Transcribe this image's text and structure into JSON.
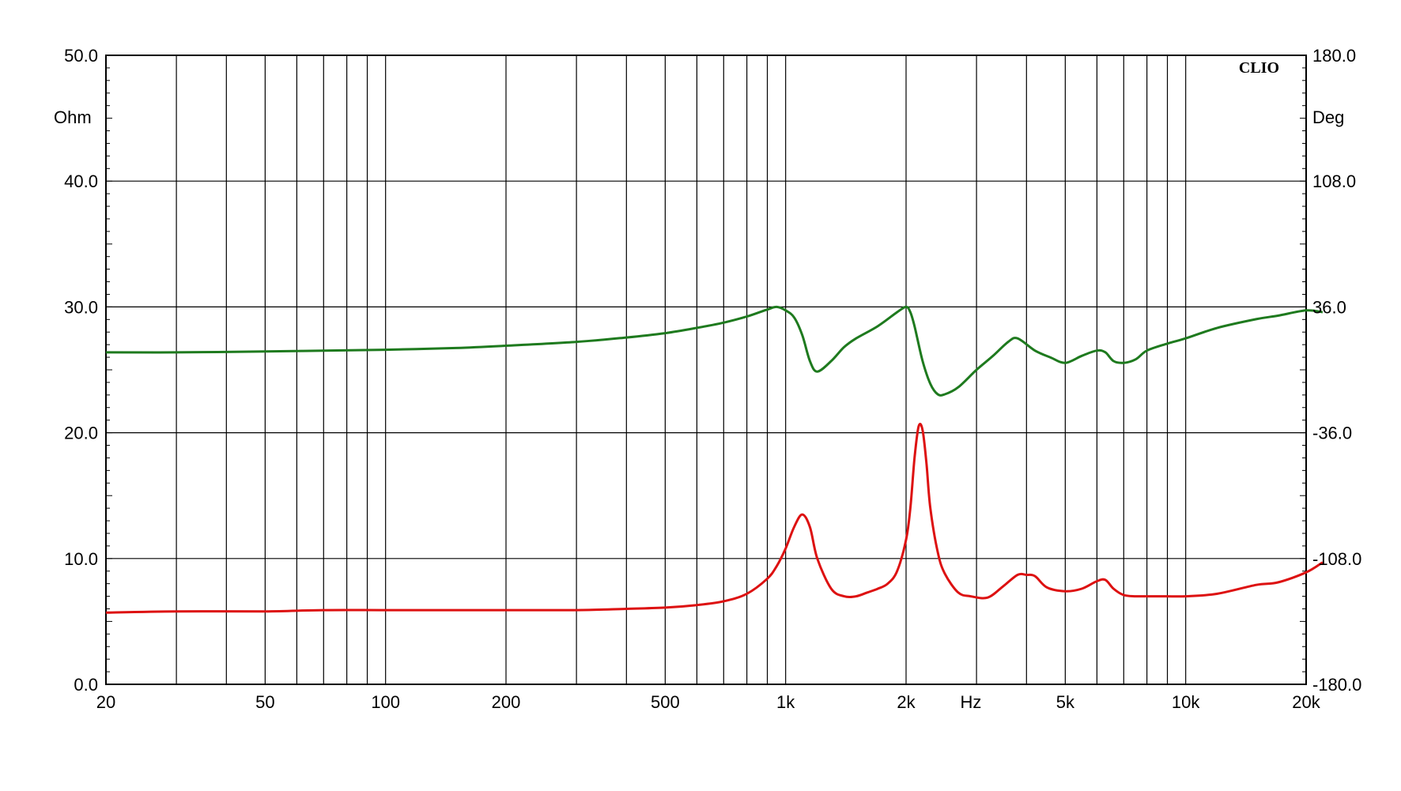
{
  "chart_data": {
    "type": "line",
    "brand": "CLIO",
    "x_scale": "log",
    "xlim": [
      20,
      20000
    ],
    "x_axis_unit": "Hz",
    "x_ticks": [
      {
        "value": 20,
        "label": "20"
      },
      {
        "value": 50,
        "label": "50"
      },
      {
        "value": 100,
        "label": "100"
      },
      {
        "value": 200,
        "label": "200"
      },
      {
        "value": 500,
        "label": "500"
      },
      {
        "value": 1000,
        "label": "1k"
      },
      {
        "value": 2000,
        "label": "2k"
      },
      {
        "value": 5000,
        "label": "5k"
      },
      {
        "value": 10000,
        "label": "10k"
      },
      {
        "value": 20000,
        "label": "20k"
      }
    ],
    "y_left": {
      "unit": "Ohm",
      "ylim": [
        0,
        50
      ],
      "ticks": [
        "0.0",
        "10.0",
        "20.0",
        "30.0",
        "40.0",
        "50.0"
      ]
    },
    "y_right": {
      "unit": "Deg",
      "ylim": [
        -180,
        180
      ],
      "ticks": [
        "-180.0",
        "-108.0",
        "-36.0",
        "36.0",
        "108.0",
        "180.0"
      ]
    },
    "grid": true,
    "series": [
      {
        "axis": "left",
        "color": "#dd1111",
        "x": [
          20,
          30,
          50,
          70,
          100,
          150,
          200,
          300,
          400,
          500,
          600,
          700,
          800,
          900,
          950,
          1000,
          1050,
          1100,
          1150,
          1200,
          1300,
          1400,
          1500,
          1600,
          1700,
          1800,
          1900,
          2000,
          2050,
          2100,
          2150,
          2200,
          2250,
          2300,
          2400,
          2500,
          2700,
          2900,
          3200,
          3500,
          3800,
          4000,
          4200,
          4500,
          5000,
          5500,
          6000,
          6300,
          6600,
          7000,
          7500,
          8000,
          9000,
          10000,
          12000,
          15000,
          17000,
          20000,
          22000
        ],
        "y": [
          5.7,
          5.8,
          5.8,
          5.9,
          5.9,
          5.9,
          5.9,
          5.9,
          6.0,
          6.1,
          6.3,
          6.6,
          7.2,
          8.4,
          9.4,
          10.8,
          12.5,
          13.5,
          12.5,
          10.0,
          7.6,
          7.0,
          7.0,
          7.3,
          7.6,
          8.0,
          9.0,
          11.5,
          14.0,
          18.0,
          20.5,
          20.2,
          17.5,
          14.0,
          10.5,
          8.8,
          7.3,
          7.0,
          6.9,
          7.8,
          8.7,
          8.7,
          8.6,
          7.7,
          7.4,
          7.6,
          8.2,
          8.3,
          7.6,
          7.1,
          7.0,
          7.0,
          7.0,
          7.0,
          7.2,
          7.9,
          8.1,
          8.9,
          9.7
        ]
      },
      {
        "axis": "right",
        "color": "#1e7a1e",
        "x": [
          20,
          30,
          50,
          70,
          100,
          150,
          200,
          300,
          400,
          500,
          600,
          700,
          800,
          900,
          950,
          1000,
          1050,
          1100,
          1150,
          1200,
          1300,
          1400,
          1500,
          1700,
          1900,
          2000,
          2050,
          2100,
          2200,
          2300,
          2400,
          2500,
          2700,
          3000,
          3300,
          3600,
          3800,
          4200,
          4600,
          5000,
          5500,
          6000,
          6300,
          6600,
          7000,
          7500,
          8000,
          9000,
          10000,
          12000,
          15000,
          17000,
          20000,
          22000
        ],
        "y": [
          10.0,
          10.0,
          10.5,
          11.0,
          11.5,
          12.5,
          13.8,
          16.0,
          18.5,
          21.0,
          24.0,
          27.0,
          30.5,
          34.5,
          36.0,
          34.0,
          30.0,
          20.0,
          5.0,
          -1.0,
          5.0,
          13.0,
          18.0,
          25.0,
          33.0,
          36.0,
          33.0,
          25.0,
          5.0,
          -8.0,
          -14.0,
          -14.0,
          -10.0,
          0.0,
          8.0,
          16.0,
          18.0,
          11.0,
          7.0,
          4.0,
          8.0,
          11.0,
          10.0,
          5.0,
          4.0,
          6.0,
          11.0,
          15.0,
          18.0,
          24.0,
          29.0,
          31.0,
          34.0,
          33.0
        ]
      }
    ]
  }
}
